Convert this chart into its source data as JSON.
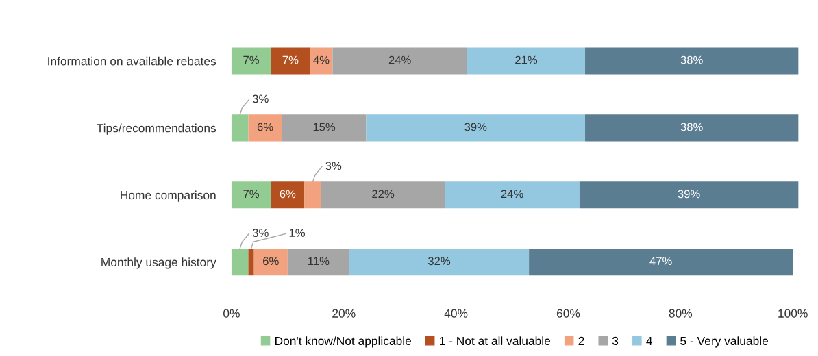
{
  "chart_data": {
    "type": "bar",
    "orientation": "horizontal",
    "stacked": true,
    "legend": "bottom",
    "grid": false,
    "categories": [
      "Information on available rebates",
      "Tips/recommendations",
      "Home comparison",
      "Monthly usage history"
    ],
    "xlim": [
      0,
      101
    ],
    "xticks": [
      {
        "value": 0,
        "label": "0%"
      },
      {
        "value": 20,
        "label": "20%"
      },
      {
        "value": 40,
        "label": "40%"
      },
      {
        "value": 60,
        "label": "60%"
      },
      {
        "value": 80,
        "label": "80%"
      },
      {
        "value": 100,
        "label": "100%"
      }
    ],
    "series": [
      {
        "name": "Don't know/Not applicable",
        "color": "#93cc92",
        "values": [
          7,
          3,
          7,
          3
        ],
        "value_labels": [
          "7%",
          "3%",
          "7%",
          "3%"
        ]
      },
      {
        "name": "1 - Not at all valuable",
        "color": "#b4501f",
        "values": [
          7,
          null,
          6,
          1
        ],
        "value_labels": [
          "7%",
          null,
          "6%",
          "1%"
        ]
      },
      {
        "name": "2",
        "color": "#f3a27f",
        "values": [
          4,
          6,
          3,
          6
        ],
        "value_labels": [
          "4%",
          "6%",
          "3%",
          "6%"
        ]
      },
      {
        "name": "3",
        "color": "#a6a6a6",
        "values": [
          24,
          15,
          22,
          11
        ],
        "value_labels": [
          "24%",
          "15%",
          "22%",
          "11%"
        ]
      },
      {
        "name": "4",
        "color": "#93c8e0",
        "values": [
          21,
          39,
          24,
          32
        ],
        "value_labels": [
          "21%",
          "39%",
          "24%",
          "32%"
        ]
      },
      {
        "name": "5 - Very valuable",
        "color": "#5b7d92",
        "values": [
          38,
          38,
          39,
          47
        ],
        "value_labels": [
          "38%",
          "38%",
          "39%",
          "47%"
        ]
      }
    ]
  }
}
